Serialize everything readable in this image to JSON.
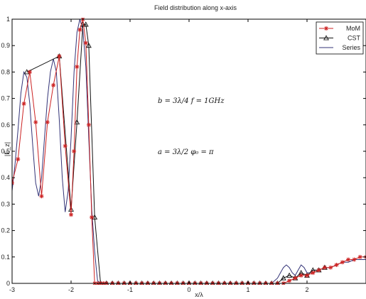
{
  "chart_data": {
    "type": "line",
    "title": "Field distribution along x-axis",
    "xlabel": "x/λ",
    "ylabel": "|E_z|",
    "xlim": [
      -3,
      3
    ],
    "ylim": [
      0,
      1
    ],
    "xticks": [
      "-3",
      "-2",
      "-1",
      "0",
      "1",
      "2"
    ],
    "yticks": [
      "0",
      "0.1",
      "0.2",
      "0.3",
      "0.4",
      "0.5",
      "0.6",
      "0.7",
      "0.8",
      "0.9",
      "1"
    ],
    "grid": false,
    "legend_position": "top-right",
    "annotations": [
      "b = 3λ/4    f = 1GHz",
      "a = 3λ/2    φ₀ = π"
    ],
    "series": [
      {
        "name": "MoM",
        "color": "#cc2222",
        "marker": "star",
        "x": [
          -3.0,
          -2.9,
          -2.8,
          -2.7,
          -2.6,
          -2.5,
          -2.4,
          -2.3,
          -2.2,
          -2.1,
          -2.0,
          -1.95,
          -1.9,
          -1.85,
          -1.8,
          -1.75,
          -1.7,
          -1.65,
          -1.6,
          -1.55,
          -1.5,
          -1.45,
          -1.4,
          -1.3,
          -1.2,
          -1.1,
          -1.0,
          -0.9,
          -0.8,
          -0.7,
          -0.6,
          -0.5,
          -0.4,
          -0.3,
          -0.2,
          -0.1,
          0.0,
          0.1,
          0.2,
          0.3,
          0.4,
          0.5,
          0.6,
          0.7,
          0.8,
          0.9,
          1.0,
          1.1,
          1.2,
          1.3,
          1.4,
          1.5,
          1.6,
          1.7,
          1.8,
          1.9,
          2.0,
          2.1,
          2.2,
          2.3,
          2.4,
          2.5,
          2.6,
          2.7,
          2.8,
          2.9,
          3.0
        ],
        "values": [
          0.38,
          0.47,
          0.68,
          0.8,
          0.61,
          0.33,
          0.61,
          0.75,
          0.86,
          0.52,
          0.26,
          0.5,
          0.82,
          0.96,
          1.0,
          0.91,
          0.6,
          0.25,
          0.0,
          0.0,
          0.0,
          0.0,
          0.0,
          0.0,
          0.0,
          0.0,
          0.0,
          0.0,
          0.0,
          0.0,
          0.0,
          0.0,
          0.0,
          0.0,
          0.0,
          0.0,
          0.0,
          0.0,
          0.0,
          0.0,
          0.0,
          0.0,
          0.0,
          0.0,
          0.0,
          0.0,
          0.0,
          0.0,
          0.0,
          0.0,
          0.0,
          0.0,
          0.0,
          0.01,
          0.02,
          0.03,
          0.03,
          0.04,
          0.05,
          0.06,
          0.06,
          0.07,
          0.08,
          0.09,
          0.09,
          0.1,
          0.1
        ]
      },
      {
        "name": "CST",
        "color": "#111111",
        "marker": "triangle",
        "x": [
          -2.75,
          -2.2,
          -2.0,
          -1.9,
          -1.8,
          -1.75,
          -1.7,
          -1.6,
          -1.5,
          -1.4,
          -1.3,
          -1.2,
          -1.1,
          -1.0,
          -0.9,
          -0.8,
          -0.7,
          -0.6,
          -0.5,
          -0.4,
          -0.3,
          -0.2,
          -0.1,
          0.0,
          0.1,
          0.2,
          0.3,
          0.4,
          0.5,
          0.6,
          0.7,
          0.8,
          0.9,
          1.0,
          1.1,
          1.2,
          1.3,
          1.4,
          1.5,
          1.6,
          1.7,
          1.8,
          1.9,
          2.0,
          2.1,
          2.2,
          2.3
        ],
        "values": [
          0.8,
          0.86,
          0.28,
          0.61,
          0.98,
          0.98,
          0.9,
          0.25,
          0.0,
          0.0,
          0.0,
          0.0,
          0.0,
          0.0,
          0.0,
          0.0,
          0.0,
          0.0,
          0.0,
          0.0,
          0.0,
          0.0,
          0.0,
          0.0,
          0.0,
          0.0,
          0.0,
          0.0,
          0.0,
          0.0,
          0.0,
          0.0,
          0.0,
          0.0,
          0.0,
          0.0,
          0.0,
          0.0,
          0.0,
          0.02,
          0.03,
          0.02,
          0.04,
          0.03,
          0.05,
          0.05,
          0.06
        ]
      },
      {
        "name": "Series",
        "color": "#333377",
        "marker": "none",
        "x": [
          -3.0,
          -2.95,
          -2.9,
          -2.85,
          -2.8,
          -2.75,
          -2.7,
          -2.65,
          -2.6,
          -2.55,
          -2.5,
          -2.45,
          -2.4,
          -2.35,
          -2.3,
          -2.25,
          -2.2,
          -2.15,
          -2.1,
          -2.05,
          -2.0,
          -1.95,
          -1.9,
          -1.85,
          -1.8,
          -1.75,
          -1.7,
          -1.65,
          -1.6,
          -1.57,
          -1.55,
          -1.5,
          -1.0,
          -0.5,
          0.0,
          0.5,
          1.0,
          1.4,
          1.5,
          1.55,
          1.6,
          1.65,
          1.7,
          1.75,
          1.8,
          1.85,
          1.9,
          1.95,
          2.0,
          2.05,
          2.1,
          2.2,
          2.3,
          2.4,
          2.5,
          2.6,
          2.7,
          2.8,
          2.9,
          3.0
        ],
        "values": [
          0.35,
          0.45,
          0.58,
          0.72,
          0.8,
          0.78,
          0.68,
          0.52,
          0.38,
          0.33,
          0.4,
          0.55,
          0.7,
          0.8,
          0.85,
          0.8,
          0.62,
          0.4,
          0.27,
          0.35,
          0.55,
          0.8,
          0.95,
          1.0,
          0.96,
          0.82,
          0.55,
          0.28,
          0.12,
          0.05,
          0.01,
          0.0,
          0.0,
          0.0,
          0.0,
          0.0,
          0.0,
          0.0,
          0.02,
          0.04,
          0.06,
          0.07,
          0.06,
          0.04,
          0.03,
          0.05,
          0.07,
          0.06,
          0.04,
          0.04,
          0.05,
          0.05,
          0.06,
          0.06,
          0.07,
          0.08,
          0.08,
          0.09,
          0.09,
          0.09
        ]
      }
    ]
  }
}
